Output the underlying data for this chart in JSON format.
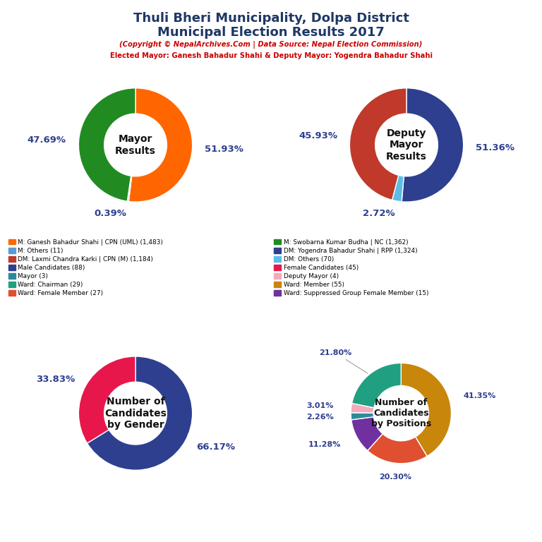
{
  "title_line1": "Thuli Bheri Municipality, Dolpa District",
  "title_line2": "Municipal Election Results 2017",
  "subtitle1": "(Copyright © NepalArchives.Com | Data Source: Nepal Election Commission)",
  "subtitle2": "Elected Mayor: Ganesh Bahadur Shahi & Deputy Mayor: Yogendra Bahadur Shahi",
  "mayor": {
    "label": "Mayor\nResults",
    "values": [
      51.93,
      0.39,
      47.69
    ],
    "colors": [
      "#FF6600",
      "#5B9BD5",
      "#218B21"
    ],
    "labels_pct": [
      "51.93%",
      "0.39%",
      "47.69%"
    ],
    "startangle": 90
  },
  "deputy": {
    "label": "Deputy\nMayor\nResults",
    "values": [
      51.36,
      2.72,
      45.93
    ],
    "colors": [
      "#2E3F8F",
      "#5BBDE8",
      "#C0392B"
    ],
    "labels_pct": [
      "51.36%",
      "2.72%",
      "45.93%"
    ],
    "startangle": 90
  },
  "gender": {
    "label": "Number of\nCandidates\nby Gender",
    "values": [
      66.17,
      33.83
    ],
    "colors": [
      "#2E3F8F",
      "#E8174B"
    ],
    "labels_pct": [
      "66.17%",
      "33.83%"
    ],
    "startangle": 90
  },
  "positions": {
    "label": "Number of\nCandidates\nby Positions",
    "values": [
      41.35,
      20.3,
      11.28,
      2.26,
      3.01,
      21.8
    ],
    "colors": [
      "#C8860A",
      "#E05030",
      "#7030A0",
      "#2B8B9B",
      "#F4AABB",
      "#20A080"
    ],
    "labels_pct": [
      "41.35%",
      "20.30%",
      "11.28%",
      "2.26%",
      "3.01%",
      "21.80%"
    ],
    "startangle": 90
  },
  "legend_items": [
    {
      "label": "M: Ganesh Bahadur Shahi | CPN (UML) (1,483)",
      "color": "#FF6600"
    },
    {
      "label": "M: Others (11)",
      "color": "#5B9BD5"
    },
    {
      "label": "DM: Laxmi Chandra Karki | CPN (M) (1,184)",
      "color": "#C0392B"
    },
    {
      "label": "Male Candidates (88)",
      "color": "#2E3F8F"
    },
    {
      "label": "Mayor (3)",
      "color": "#2B8B9B"
    },
    {
      "label": "Ward: Chairman (29)",
      "color": "#20A080"
    },
    {
      "label": "Ward: Female Member (27)",
      "color": "#E05030"
    },
    {
      "label": "M: Swobarna Kumar Budha | NC (1,362)",
      "color": "#218B21"
    },
    {
      "label": "DM: Yogendra Bahadur Shahi | RPP (1,324)",
      "color": "#2E3F8F"
    },
    {
      "label": "DM: Others (70)",
      "color": "#5BBDE8"
    },
    {
      "label": "Female Candidates (45)",
      "color": "#E8174B"
    },
    {
      "label": "Deputy Mayor (4)",
      "color": "#F4AABB"
    },
    {
      "label": "Ward: Member (55)",
      "color": "#C8860A"
    },
    {
      "label": "Ward: Suppressed Group Female Member (15)",
      "color": "#7030A0"
    }
  ]
}
